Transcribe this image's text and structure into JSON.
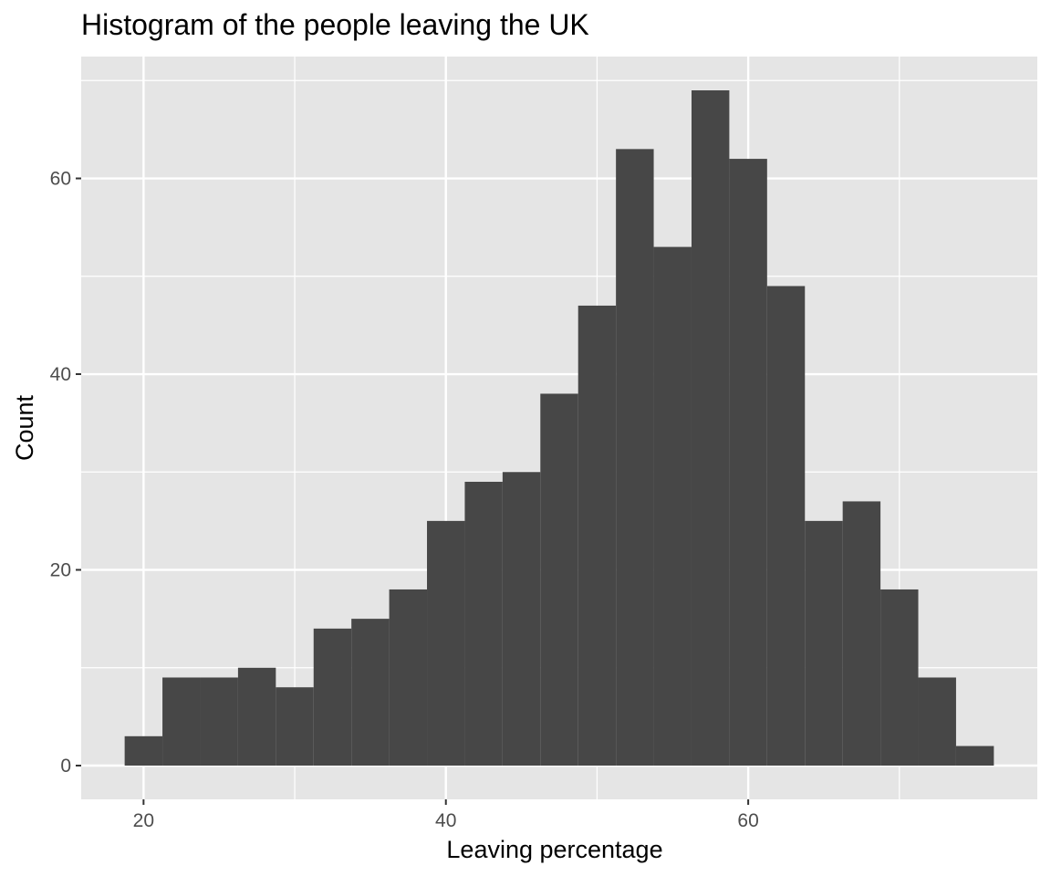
{
  "chart_data": {
    "type": "bar",
    "title": "Histogram of the people leaving the UK",
    "xlabel": "Leaving percentage",
    "ylabel": "Count",
    "bin_width": 2.5,
    "bins": [
      {
        "x_start": 18.75,
        "x_end": 21.25,
        "count": 3
      },
      {
        "x_start": 21.25,
        "x_end": 23.75,
        "count": 9
      },
      {
        "x_start": 23.75,
        "x_end": 26.25,
        "count": 9
      },
      {
        "x_start": 26.25,
        "x_end": 28.75,
        "count": 10
      },
      {
        "x_start": 28.75,
        "x_end": 31.25,
        "count": 8
      },
      {
        "x_start": 31.25,
        "x_end": 33.75,
        "count": 14
      },
      {
        "x_start": 33.75,
        "x_end": 36.25,
        "count": 15
      },
      {
        "x_start": 36.25,
        "x_end": 38.75,
        "count": 18
      },
      {
        "x_start": 38.75,
        "x_end": 41.25,
        "count": 25
      },
      {
        "x_start": 41.25,
        "x_end": 43.75,
        "count": 29
      },
      {
        "x_start": 43.75,
        "x_end": 46.25,
        "count": 30
      },
      {
        "x_start": 46.25,
        "x_end": 48.75,
        "count": 38
      },
      {
        "x_start": 48.75,
        "x_end": 51.25,
        "count": 47
      },
      {
        "x_start": 51.25,
        "x_end": 53.75,
        "count": 63
      },
      {
        "x_start": 53.75,
        "x_end": 56.25,
        "count": 53
      },
      {
        "x_start": 56.25,
        "x_end": 58.75,
        "count": 69
      },
      {
        "x_start": 58.75,
        "x_end": 61.25,
        "count": 62
      },
      {
        "x_start": 61.25,
        "x_end": 63.75,
        "count": 49
      },
      {
        "x_start": 63.75,
        "x_end": 66.25,
        "count": 25
      },
      {
        "x_start": 66.25,
        "x_end": 68.75,
        "count": 27
      },
      {
        "x_start": 68.75,
        "x_end": 71.25,
        "count": 18
      },
      {
        "x_start": 71.25,
        "x_end": 73.75,
        "count": 9
      },
      {
        "x_start": 73.75,
        "x_end": 76.25,
        "count": 2
      }
    ],
    "xlim": [
      15.875,
      79.125
    ],
    "ylim": [
      -3.45,
      72.45
    ],
    "x_ticks": [
      20,
      40,
      60
    ],
    "y_ticks": [
      0,
      20,
      40,
      60
    ],
    "x_minor_grid": [
      30,
      50,
      70
    ],
    "y_minor_grid": [
      10,
      30,
      50,
      70
    ],
    "grid": true,
    "legend": "none",
    "colors": {
      "bar_fill": "#474747",
      "panel_background": "#e5e5e5",
      "grid_line": "#ffffff",
      "tick_label": "#4d4d4d",
      "tick_mark": "#333333",
      "text": "#000000"
    }
  }
}
